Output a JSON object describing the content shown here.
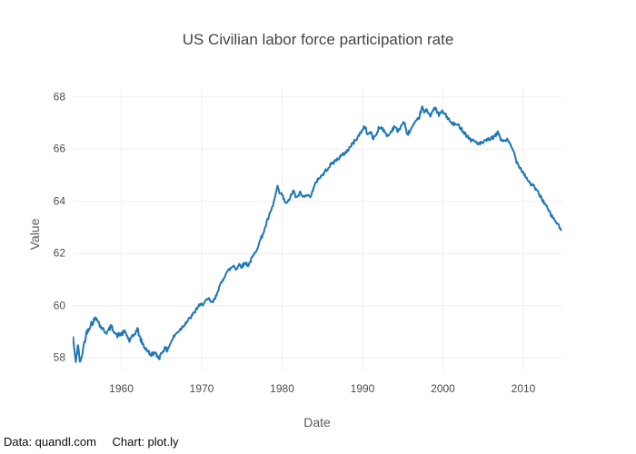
{
  "chart": {
    "title": "US Civilian labor force participation rate",
    "xlabel": "Date",
    "ylabel": "Value",
    "attribution": {
      "data_source": "Data: quandl.com",
      "chart_credit": "Chart: plot.ly"
    }
  },
  "chart_data": {
    "type": "line",
    "title": "US Civilian labor force participation rate",
    "xlabel": "Date",
    "ylabel": "Value",
    "legend": false,
    "grid": true,
    "x_ticks": [
      1960,
      1970,
      1980,
      1990,
      2000,
      2010
    ],
    "y_ticks": [
      58,
      60,
      62,
      64,
      66,
      68
    ],
    "x_range": [
      1953.95,
      2014.8
    ],
    "y_range": [
      57.52,
      68.34
    ],
    "line_color": "#1f77b4",
    "grid_color": "#eeeeee",
    "text_color": "#444444",
    "attribution_color": "#0a0a0a",
    "jitter_amplitude": 0.07,
    "series": [
      {
        "name": "Value",
        "x": [
          1954.0,
          1954.2,
          1954.35,
          1954.6,
          1954.9,
          1955.2,
          1955.7,
          1956.2,
          1956.8,
          1957.0,
          1957.3,
          1957.7,
          1958.0,
          1958.3,
          1958.7,
          1959.0,
          1959.4,
          1959.8,
          1960.2,
          1960.5,
          1961.0,
          1961.4,
          1961.7,
          1962.0,
          1962.4,
          1962.8,
          1963.3,
          1963.6,
          1964.0,
          1964.4,
          1964.7,
          1965.0,
          1965.3,
          1965.7,
          1966.0,
          1966.5,
          1967.0,
          1967.5,
          1968.0,
          1968.5,
          1969.0,
          1969.5,
          1970.0,
          1970.4,
          1970.9,
          1971.3,
          1971.7,
          1972.0,
          1972.5,
          1973.0,
          1973.5,
          1974.0,
          1974.3,
          1974.7,
          1975.0,
          1975.4,
          1975.8,
          1976.2,
          1976.6,
          1977.0,
          1977.4,
          1977.8,
          1978.2,
          1978.6,
          1979.0,
          1979.4,
          1979.7,
          1980.0,
          1980.3,
          1980.6,
          1981.0,
          1981.4,
          1981.8,
          1982.2,
          1982.6,
          1983.0,
          1983.4,
          1983.8,
          1984.4,
          1985.0,
          1985.6,
          1986.2,
          1986.8,
          1987.4,
          1988.0,
          1988.5,
          1989.0,
          1989.5,
          1990.0,
          1990.3,
          1990.6,
          1991.0,
          1991.3,
          1991.7,
          1992.0,
          1992.4,
          1992.8,
          1993.2,
          1993.6,
          1994.0,
          1994.4,
          1994.8,
          1995.2,
          1995.5,
          1995.9,
          1996.3,
          1996.7,
          1997.0,
          1997.4,
          1997.7,
          1998.0,
          1998.4,
          1998.8,
          1999.1,
          1999.5,
          1999.9,
          2000.2,
          2000.6,
          2001.0,
          2001.5,
          2002.0,
          2002.5,
          2003.0,
          2003.5,
          2004.0,
          2004.5,
          2005.0,
          2005.5,
          2006.0,
          2006.5,
          2006.9,
          2007.3,
          2007.7,
          2008.0,
          2008.4,
          2008.8,
          2009.2,
          2009.6,
          2010.0,
          2010.4,
          2010.8,
          2011.2,
          2011.6,
          2012.0,
          2012.4,
          2012.8,
          2013.2,
          2013.6,
          2014.0,
          2014.3,
          2014.6,
          2014.8
        ],
        "y": [
          58.8,
          58.1,
          57.9,
          58.5,
          57.75,
          58.3,
          59.0,
          59.3,
          59.5,
          59.55,
          59.25,
          59.1,
          59.0,
          59.0,
          59.2,
          59.1,
          58.85,
          58.9,
          58.95,
          59.0,
          58.65,
          58.8,
          58.95,
          59.1,
          58.7,
          58.45,
          58.27,
          58.1,
          58.2,
          58.1,
          58.0,
          58.2,
          58.35,
          58.3,
          58.5,
          58.8,
          59.0,
          59.15,
          59.35,
          59.5,
          59.7,
          59.95,
          60.05,
          60.15,
          60.25,
          60.1,
          60.3,
          60.6,
          60.9,
          61.25,
          61.4,
          61.55,
          61.4,
          61.6,
          61.5,
          61.65,
          61.55,
          61.8,
          62.0,
          62.3,
          62.6,
          62.9,
          63.3,
          63.6,
          64.0,
          64.55,
          64.3,
          64.25,
          64.0,
          63.9,
          64.15,
          64.4,
          64.1,
          64.35,
          64.15,
          64.3,
          64.15,
          64.4,
          64.85,
          65.0,
          65.25,
          65.45,
          65.6,
          65.75,
          65.9,
          66.1,
          66.3,
          66.5,
          66.75,
          66.9,
          66.55,
          66.65,
          66.4,
          66.55,
          66.8,
          66.85,
          66.6,
          66.5,
          66.7,
          66.9,
          66.65,
          66.9,
          67.05,
          66.55,
          66.7,
          66.9,
          67.05,
          67.2,
          67.6,
          67.4,
          67.5,
          67.3,
          67.5,
          67.55,
          67.3,
          67.45,
          67.35,
          67.2,
          67.0,
          66.95,
          66.9,
          66.7,
          66.5,
          66.35,
          66.3,
          66.2,
          66.25,
          66.35,
          66.4,
          66.5,
          66.65,
          66.3,
          66.35,
          66.35,
          66.15,
          65.9,
          65.5,
          65.3,
          65.1,
          64.9,
          64.7,
          64.6,
          64.45,
          64.25,
          64.05,
          63.85,
          63.6,
          63.4,
          63.25,
          63.1,
          62.95,
          62.85
        ]
      }
    ]
  }
}
